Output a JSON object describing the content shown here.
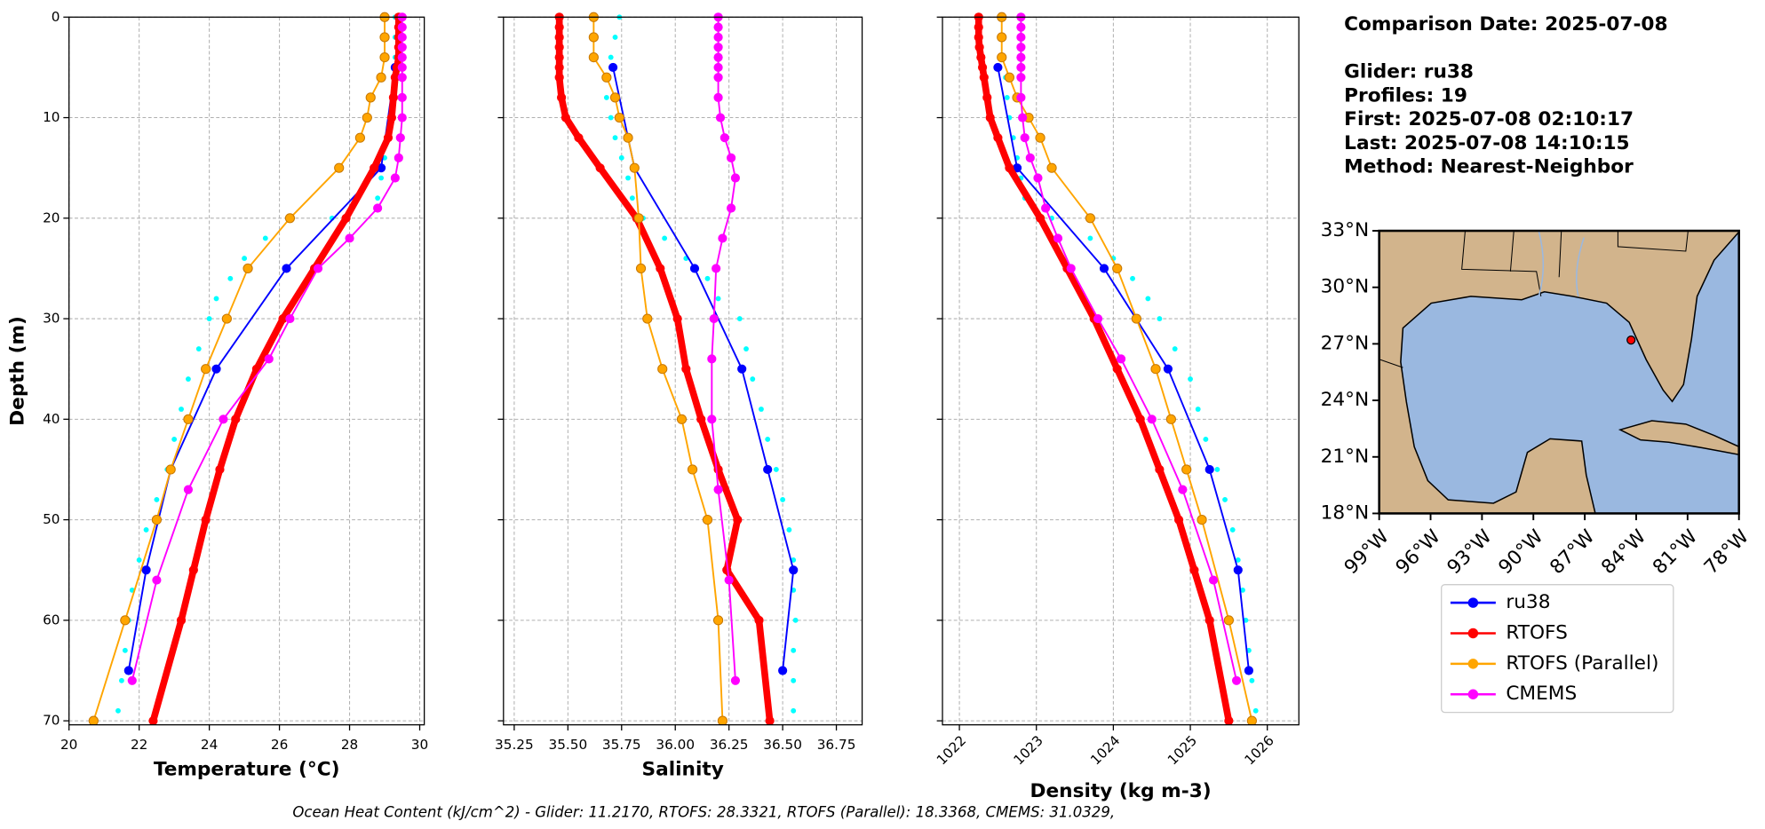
{
  "chart_data": [
    {
      "type": "line",
      "xlabel": "Temperature (°C)",
      "ylabel": "Depth (m)",
      "xlim": [
        20,
        30.13
      ],
      "ylim": [
        70.4,
        0
      ],
      "xticks": [
        20,
        22,
        24,
        26,
        28,
        30
      ],
      "yticks": [
        0,
        10,
        20,
        30,
        40,
        50,
        60,
        70
      ],
      "grid": true,
      "show_ytick_labels": true,
      "series": [
        {
          "color": "#00ffff",
          "line": false,
          "values": [
            0,
            2,
            4,
            6,
            8,
            10,
            12,
            14,
            16,
            18,
            20,
            22,
            24,
            26,
            28,
            30,
            33,
            36,
            39,
            42,
            45,
            48,
            51,
            54,
            57,
            60,
            63,
            66,
            69
          ],
          "x": [
            29.3,
            29.3,
            29.3,
            29.3,
            29.3,
            29.2,
            29.1,
            29.0,
            28.9,
            28.8,
            27.5,
            25.6,
            25.0,
            24.6,
            24.2,
            24.0,
            23.7,
            23.4,
            23.2,
            23.0,
            22.8,
            22.5,
            22.2,
            22.0,
            21.8,
            21.7,
            21.6,
            21.5,
            21.4
          ]
        },
        {
          "name": "ru38",
          "color": "#0000ff",
          "line": true,
          "width": 1.5,
          "values": [
            5,
            15,
            25,
            35,
            45,
            55,
            65
          ],
          "x": [
            29.3,
            28.9,
            26.2,
            24.2,
            22.9,
            22.2,
            21.7
          ]
        },
        {
          "name": "RTOFS",
          "color": "#ff0000",
          "line": true,
          "width": 6,
          "values": [
            0,
            1,
            2,
            3,
            4,
            5,
            6,
            8,
            10,
            12,
            15,
            20,
            25,
            30,
            35,
            40,
            45,
            50,
            55,
            60,
            70
          ],
          "x": [
            29.4,
            29.4,
            29.4,
            29.4,
            29.4,
            29.35,
            29.3,
            29.25,
            29.2,
            29.1,
            28.7,
            27.9,
            27.0,
            26.1,
            25.35,
            24.75,
            24.3,
            23.9,
            23.55,
            23.2,
            22.4
          ]
        },
        {
          "name": "RTOFS (Parallel)",
          "color": "#ffa500",
          "line": true,
          "width": 1.5,
          "values": [
            0,
            2,
            4,
            6,
            8,
            10,
            12,
            15,
            20,
            25,
            30,
            35,
            40,
            45,
            50,
            60,
            70
          ],
          "x": [
            29.0,
            29.0,
            29.0,
            28.9,
            28.6,
            28.5,
            28.3,
            27.7,
            26.3,
            25.1,
            24.5,
            23.9,
            23.4,
            22.9,
            22.5,
            21.6,
            20.7
          ]
        },
        {
          "name": "CMEMS",
          "color": "#ff00ff",
          "line": true,
          "width": 1.5,
          "values": [
            0,
            1,
            2,
            3,
            4,
            5,
            6,
            8,
            10,
            12,
            14,
            16,
            19,
            22,
            25,
            30,
            34,
            40,
            47,
            56,
            66
          ],
          "x": [
            29.5,
            29.5,
            29.5,
            29.5,
            29.5,
            29.5,
            29.5,
            29.5,
            29.5,
            29.45,
            29.4,
            29.3,
            28.8,
            28.0,
            27.1,
            26.3,
            25.7,
            24.4,
            23.4,
            22.5,
            21.8
          ]
        }
      ]
    },
    {
      "type": "line",
      "xlabel": "Salinity",
      "xlim": [
        35.2,
        36.87
      ],
      "ylim": [
        70.4,
        0
      ],
      "xticks": [
        35.25,
        {
          "value": 35.5,
          "label": "35.50"
        },
        35.75,
        {
          "value": 36,
          "label": "36.00"
        },
        36.25,
        {
          "value": 36.5,
          "label": "36.50"
        },
        36.75
      ],
      "yticks": [
        0,
        10,
        20,
        30,
        40,
        50,
        60,
        70
      ],
      "grid": true,
      "show_ytick_labels": false,
      "series": [
        {
          "color": "#00ffff",
          "line": false,
          "values": [
            0,
            2,
            4,
            6,
            8,
            10,
            12,
            14,
            16,
            18,
            20,
            22,
            24,
            26,
            28,
            30,
            33,
            36,
            39,
            42,
            45,
            48,
            51,
            54,
            57,
            60,
            63,
            66,
            69
          ],
          "x": [
            35.74,
            35.72,
            35.7,
            35.68,
            35.68,
            35.7,
            35.72,
            35.75,
            35.78,
            35.8,
            35.85,
            35.95,
            36.05,
            36.15,
            36.2,
            36.3,
            36.33,
            36.36,
            36.4,
            36.43,
            36.47,
            36.5,
            36.53,
            36.55,
            36.55,
            36.56,
            36.55,
            36.55,
            36.55
          ]
        },
        {
          "color": "#0000ff",
          "line": true,
          "width": 1.5,
          "values": [
            5,
            15,
            25,
            35,
            45,
            55,
            65
          ],
          "x": [
            35.71,
            35.81,
            36.09,
            36.31,
            36.43,
            36.55,
            36.5
          ]
        },
        {
          "color": "#ff0000",
          "line": true,
          "width": 6,
          "values": [
            0,
            1,
            2,
            3,
            4,
            5,
            6,
            8,
            10,
            12,
            15,
            20,
            25,
            30,
            35,
            40,
            45,
            50,
            55,
            60,
            70
          ],
          "x": [
            35.46,
            35.46,
            35.46,
            35.46,
            35.46,
            35.46,
            35.46,
            35.47,
            35.49,
            35.55,
            35.65,
            35.82,
            35.93,
            36.01,
            36.05,
            36.12,
            36.2,
            36.29,
            36.24,
            36.39,
            36.44
          ]
        },
        {
          "color": "#ffa500",
          "line": true,
          "width": 1.5,
          "values": [
            0,
            2,
            4,
            6,
            8,
            10,
            12,
            15,
            20,
            25,
            30,
            35,
            40,
            45,
            50,
            60,
            70
          ],
          "x": [
            35.62,
            35.62,
            35.62,
            35.68,
            35.72,
            35.74,
            35.78,
            35.81,
            35.83,
            35.84,
            35.87,
            35.94,
            36.03,
            36.08,
            36.15,
            36.2,
            36.22
          ]
        },
        {
          "color": "#ff00ff",
          "line": true,
          "width": 1.5,
          "values": [
            0,
            1,
            2,
            3,
            4,
            5,
            6,
            8,
            10,
            12,
            14,
            16,
            19,
            22,
            25,
            30,
            34,
            40,
            47,
            56,
            66
          ],
          "x": [
            36.2,
            36.2,
            36.2,
            36.2,
            36.2,
            36.2,
            36.2,
            36.2,
            36.21,
            36.23,
            36.26,
            36.28,
            36.26,
            36.22,
            36.19,
            36.18,
            36.17,
            36.17,
            36.2,
            36.25,
            36.28
          ]
        }
      ]
    },
    {
      "type": "line",
      "xlabel": "Density (kg m-3)",
      "xlim": [
        1021.78,
        1026.41
      ],
      "ylim": [
        70.4,
        0
      ],
      "xticks": [
        1022,
        1023,
        1024,
        1025,
        1026
      ],
      "xtick_rotation": 45,
      "yticks": [
        0,
        10,
        20,
        30,
        40,
        50,
        60,
        70
      ],
      "grid": true,
      "show_ytick_labels": false,
      "series": [
        {
          "color": "#00ffff",
          "line": false,
          "values": [
            0,
            2,
            4,
            6,
            8,
            10,
            12,
            14,
            16,
            18,
            20,
            22,
            24,
            26,
            28,
            30,
            33,
            36,
            39,
            42,
            45,
            48,
            51,
            54,
            57,
            60,
            63,
            66,
            69
          ],
          "x": [
            1022.55,
            1022.55,
            1022.55,
            1022.6,
            1022.62,
            1022.65,
            1022.7,
            1022.75,
            1022.8,
            1022.85,
            1023.2,
            1023.7,
            1024.0,
            1024.25,
            1024.45,
            1024.6,
            1024.8,
            1025.0,
            1025.1,
            1025.2,
            1025.35,
            1025.45,
            1025.55,
            1025.62,
            1025.68,
            1025.72,
            1025.76,
            1025.8,
            1025.85
          ]
        },
        {
          "color": "#0000ff",
          "line": true,
          "width": 1.5,
          "values": [
            5,
            15,
            25,
            35,
            45,
            55,
            65
          ],
          "x": [
            1022.5,
            1022.75,
            1023.88,
            1024.71,
            1025.25,
            1025.62,
            1025.76
          ]
        },
        {
          "color": "#ff0000",
          "line": true,
          "width": 6,
          "values": [
            0,
            1,
            2,
            3,
            4,
            5,
            6,
            8,
            10,
            12,
            15,
            20,
            25,
            30,
            35,
            40,
            45,
            50,
            55,
            60,
            70
          ],
          "x": [
            1022.25,
            1022.25,
            1022.25,
            1022.26,
            1022.28,
            1022.3,
            1022.32,
            1022.36,
            1022.4,
            1022.5,
            1022.65,
            1023.05,
            1023.4,
            1023.75,
            1024.05,
            1024.35,
            1024.6,
            1024.85,
            1025.05,
            1025.25,
            1025.5
          ]
        },
        {
          "color": "#ffa500",
          "line": true,
          "width": 1.5,
          "values": [
            0,
            2,
            4,
            6,
            8,
            10,
            12,
            15,
            20,
            25,
            30,
            35,
            40,
            45,
            50,
            60,
            70
          ],
          "x": [
            1022.55,
            1022.55,
            1022.55,
            1022.65,
            1022.75,
            1022.9,
            1023.05,
            1023.2,
            1023.7,
            1024.05,
            1024.3,
            1024.55,
            1024.75,
            1024.95,
            1025.15,
            1025.5,
            1025.8
          ]
        },
        {
          "color": "#ff00ff",
          "line": true,
          "width": 1.5,
          "values": [
            0,
            1,
            2,
            3,
            4,
            5,
            6,
            8,
            10,
            12,
            14,
            16,
            19,
            22,
            25,
            30,
            34,
            40,
            47,
            56,
            66
          ],
          "x": [
            1022.8,
            1022.8,
            1022.8,
            1022.8,
            1022.8,
            1022.8,
            1022.8,
            1022.8,
            1022.82,
            1022.85,
            1022.92,
            1023.02,
            1023.12,
            1023.28,
            1023.45,
            1023.8,
            1024.1,
            1024.5,
            1024.9,
            1025.3,
            1025.6
          ]
        }
      ]
    },
    {
      "type": "map",
      "xlim": [
        -99,
        -78
      ],
      "ylim": [
        18,
        33
      ],
      "xticks": [
        {
          "value": -99,
          "label": "99°W"
        },
        {
          "value": -96,
          "label": "96°W"
        },
        {
          "value": -93,
          "label": "93°W"
        },
        {
          "value": -90,
          "label": "90°W"
        },
        {
          "value": -87,
          "label": "87°W"
        },
        {
          "value": -84,
          "label": "84°W"
        },
        {
          "value": -81,
          "label": "81°W"
        },
        {
          "value": -78,
          "label": "78°W"
        }
      ],
      "yticks": [
        {
          "value": 33,
          "label": "33°N"
        },
        {
          "value": 30,
          "label": "30°N"
        },
        {
          "value": 27,
          "label": "27°N"
        },
        {
          "value": 24,
          "label": "24°N"
        },
        {
          "value": 21,
          "label": "21°N"
        },
        {
          "value": 18,
          "label": "18°N"
        }
      ],
      "series": [
        {
          "color": "#ff0000",
          "x": [
            -84.3
          ],
          "values": [
            27.2
          ]
        }
      ]
    }
  ],
  "annotation": {
    "title": "Comparison Date: 2025-07-08",
    "lines": [
      "Glider: ru38",
      "Profiles: 19",
      "First: 2025-07-08 02:10:17",
      "Last: 2025-07-08 14:10:15",
      "Method: Nearest-Neighbor"
    ]
  },
  "footer": "Ocean Heat Content (kJ/cm^2) - Glider: 11.2170,  RTOFS: 28.3321,  RTOFS (Parallel): 18.3368,  CMEMS: 31.0329,"
}
